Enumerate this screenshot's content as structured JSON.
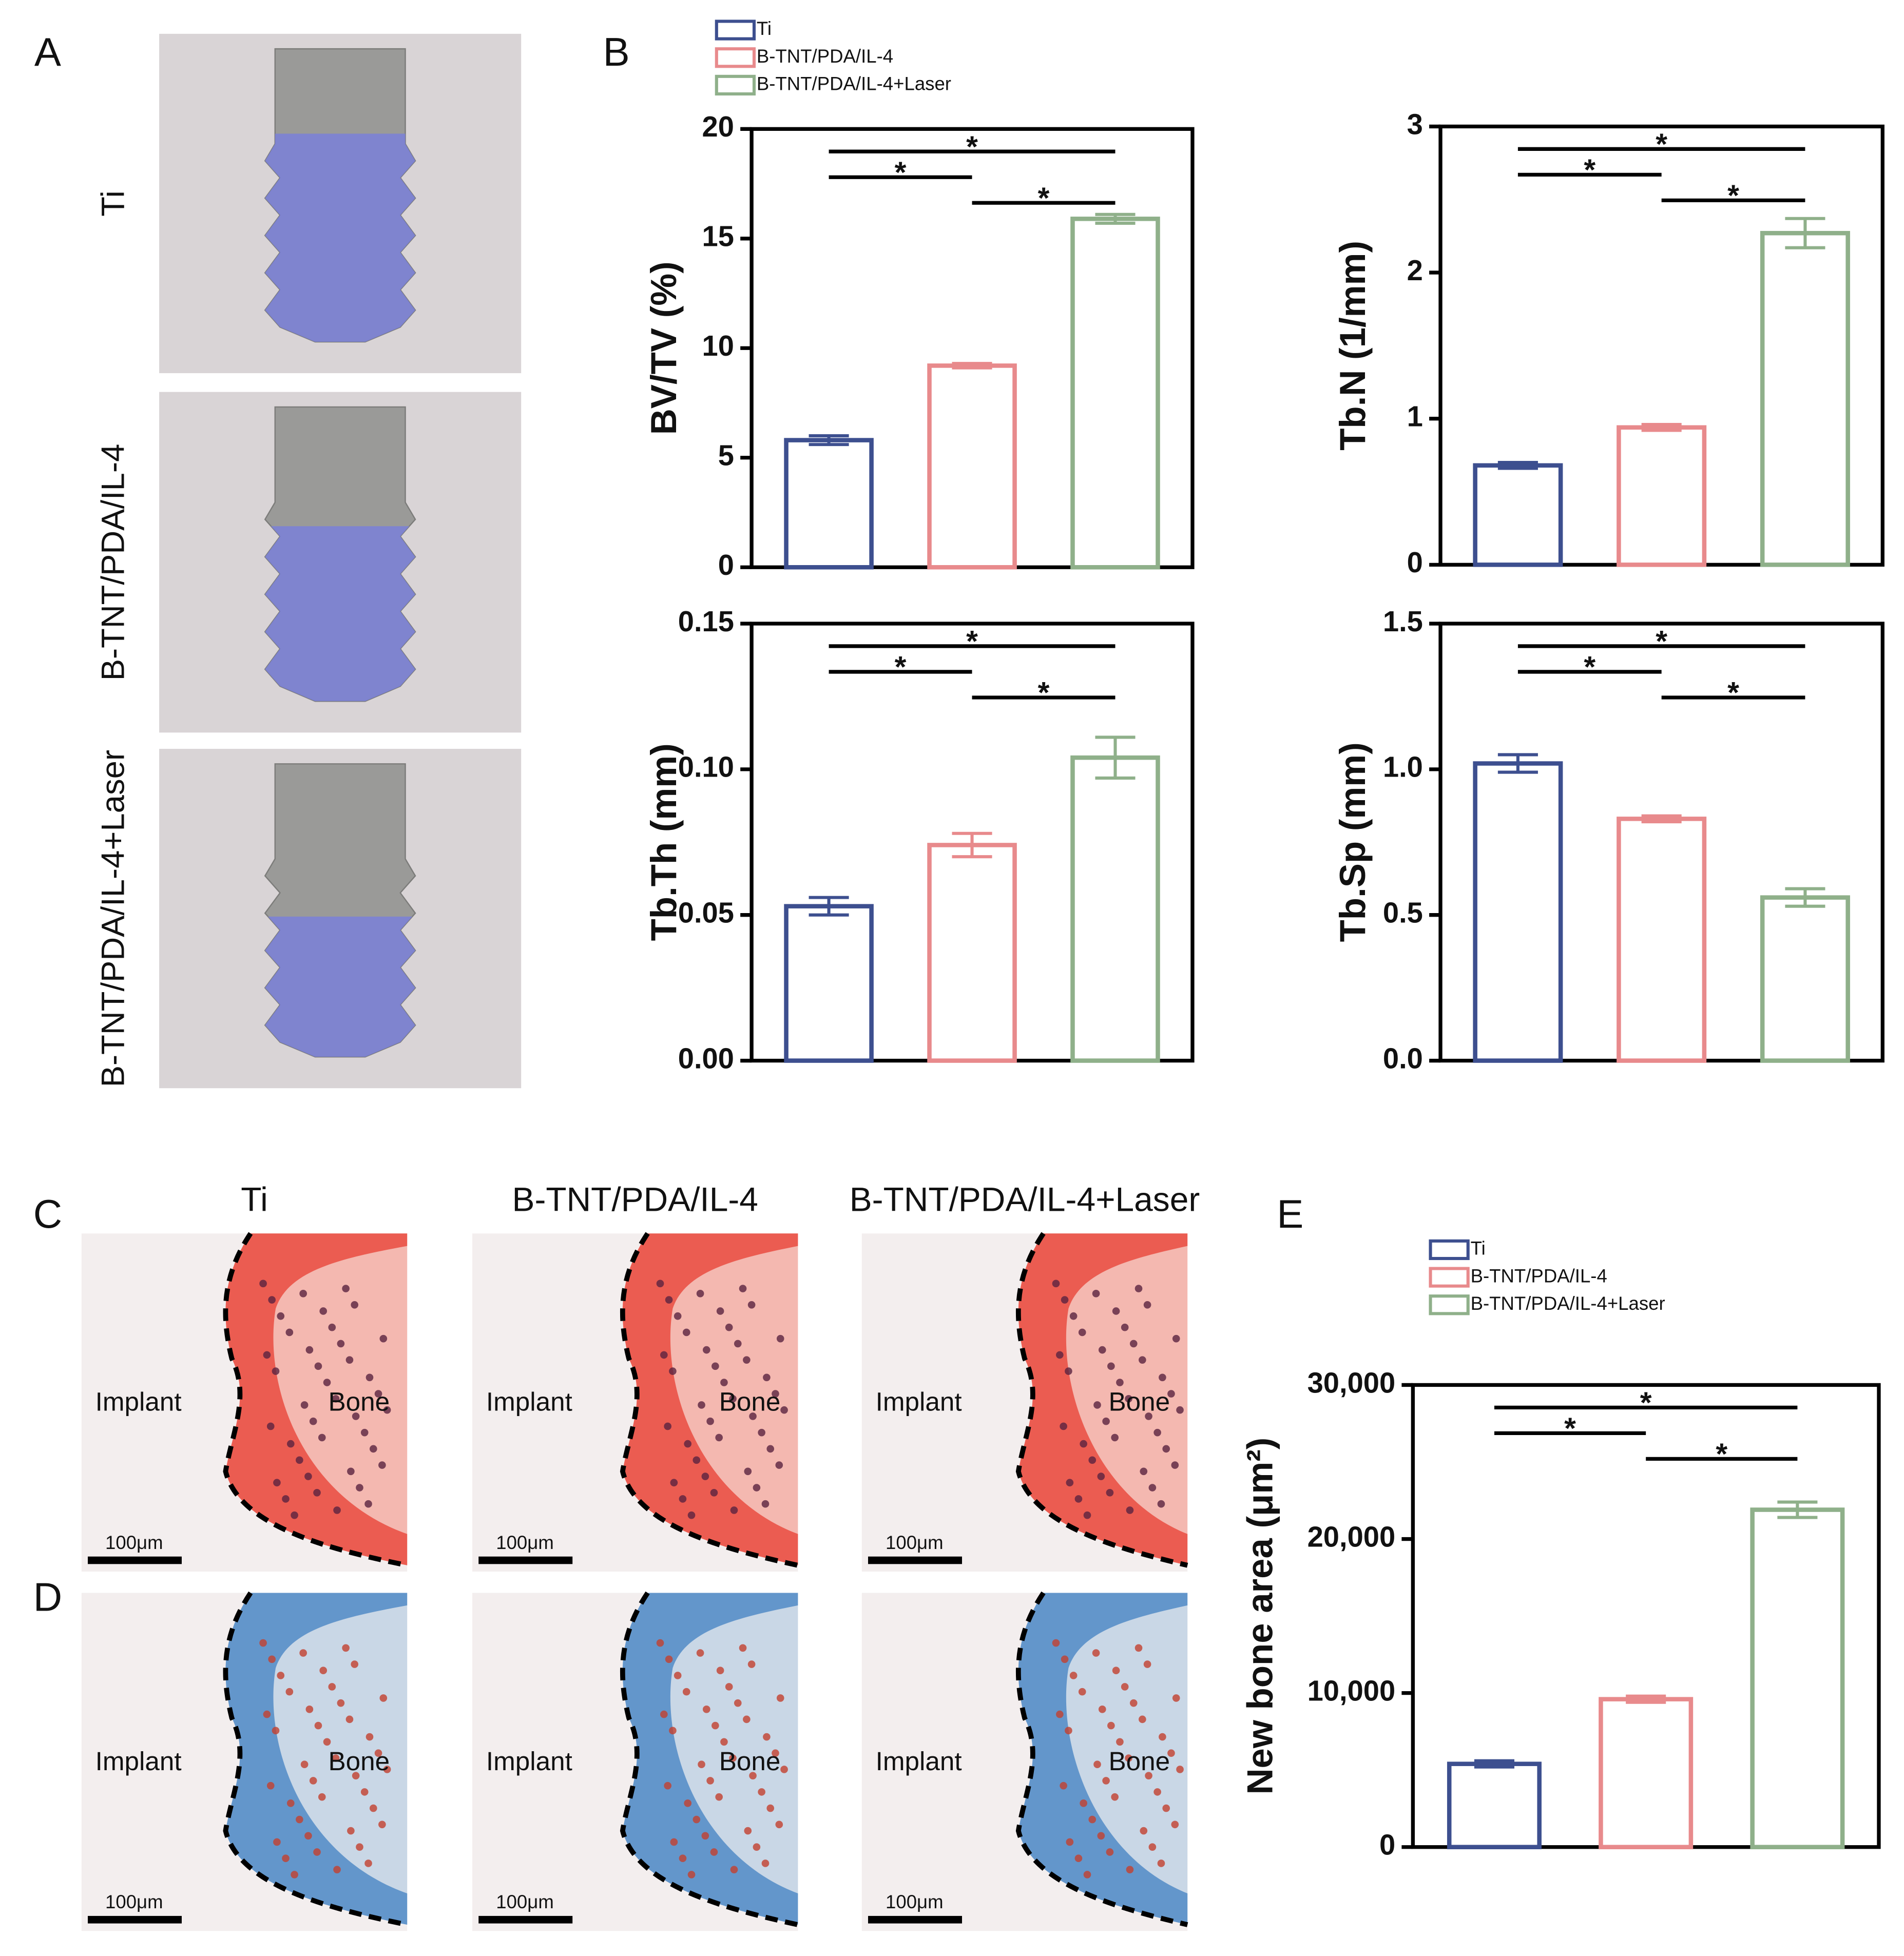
{
  "panel_labels": [
    "A",
    "B",
    "C",
    "D",
    "E"
  ],
  "panel_a": {
    "rows": [
      "Ti",
      "B-TNT/PDA/IL-4",
      "B-TNT/PDA/IL-4+Laser"
    ]
  },
  "histology": {
    "columns": [
      "Ti",
      "B-TNT/PDA/IL-4",
      "B-TNT/PDA/IL-4+Laser"
    ],
    "implant_label": "Implant",
    "bone_label": "Bone",
    "scale_bar": "100μm"
  },
  "chart_data": [
    {
      "type": "bar",
      "y_label": "BV/TV (%)",
      "legend": true,
      "categories": [
        "Ti",
        "B-TNT/PDA/IL-4",
        "B-TNT/PDA/IL-4+Laser"
      ],
      "colors": [
        "#3d4f8f",
        "#e88a8c",
        "#8fb08a"
      ],
      "values": [
        5.8,
        9.2,
        15.9
      ],
      "errors": [
        0.2,
        0.1,
        0.2
      ],
      "ylim": [
        0,
        20
      ],
      "yticks": [
        0,
        5,
        10,
        15,
        20
      ],
      "significance": [
        {
          "label": "*",
          "bars": [
            0,
            2
          ]
        },
        {
          "label": "*",
          "bars": [
            0,
            1
          ]
        },
        {
          "label": "*",
          "bars": [
            1,
            2
          ]
        }
      ]
    },
    {
      "type": "bar",
      "y_label": "Tb.N (1/mm)",
      "colors": [
        "#3d4f8f",
        "#e88a8c",
        "#8fb08a"
      ],
      "values": [
        0.68,
        0.94,
        2.27
      ],
      "errors": [
        0.02,
        0.02,
        0.1
      ],
      "ylim": [
        0,
        3
      ],
      "yticks": [
        0,
        1,
        2,
        3
      ],
      "significance": [
        {
          "label": "*",
          "bars": [
            0,
            2
          ]
        },
        {
          "label": "*",
          "bars": [
            0,
            1
          ]
        },
        {
          "label": "*",
          "bars": [
            1,
            2
          ]
        }
      ]
    },
    {
      "type": "bar",
      "y_label": "Tb.Th (mm)",
      "colors": [
        "#3d4f8f",
        "#e88a8c",
        "#8fb08a"
      ],
      "values": [
        0.053,
        0.074,
        0.104
      ],
      "errors": [
        0.003,
        0.004,
        0.007
      ],
      "ylim": [
        0,
        0.15
      ],
      "yticks": [
        {
          "value": 0,
          "label": "0.00"
        },
        0.05,
        {
          "value": 0.1,
          "label": "0.10"
        },
        0.15
      ],
      "significance": [
        {
          "label": "*",
          "bars": [
            0,
            2
          ]
        },
        {
          "label": "*",
          "bars": [
            0,
            1
          ]
        },
        {
          "label": "*",
          "bars": [
            1,
            2
          ]
        }
      ]
    },
    {
      "type": "bar",
      "y_label": "Tb.Sp (mm)",
      "colors": [
        "#3d4f8f",
        "#e88a8c",
        "#8fb08a"
      ],
      "values": [
        1.02,
        0.83,
        0.56
      ],
      "errors": [
        0.03,
        0.01,
        0.03
      ],
      "ylim": [
        0,
        1.5
      ],
      "yticks": [
        {
          "value": 0,
          "label": "0.0"
        },
        0.5,
        {
          "value": 1,
          "label": "1.0"
        },
        1.5
      ],
      "significance": [
        {
          "label": "*",
          "bars": [
            0,
            2
          ]
        },
        {
          "label": "*",
          "bars": [
            0,
            1
          ]
        },
        {
          "label": "*",
          "bars": [
            1,
            2
          ]
        }
      ]
    },
    {
      "type": "bar",
      "y_label": "New bone area (μm²)",
      "legend": true,
      "categories": [
        "Ti",
        "B-TNT/PDA/IL-4",
        "B-TNT/PDA/IL-4+Laser"
      ],
      "colors": [
        "#3d4f8f",
        "#e88a8c",
        "#8fb08a"
      ],
      "values": [
        5400,
        9600,
        21900
      ],
      "errors": [
        200,
        200,
        500
      ],
      "ylim": [
        0,
        30000
      ],
      "yticks": [
        0,
        {
          "value": 10000,
          "label": "10,000"
        },
        {
          "value": 20000,
          "label": "20,000"
        },
        {
          "value": 30000,
          "label": "30,000"
        }
      ],
      "significance": [
        {
          "label": "*",
          "bars": [
            0,
            2
          ]
        },
        {
          "label": "*",
          "bars": [
            0,
            1
          ]
        },
        {
          "label": "*",
          "bars": [
            1,
            2
          ]
        }
      ]
    }
  ]
}
